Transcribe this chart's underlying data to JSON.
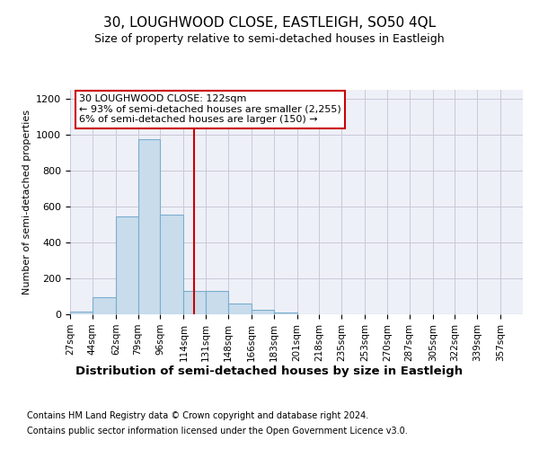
{
  "title": "30, LOUGHWOOD CLOSE, EASTLEIGH, SO50 4QL",
  "subtitle": "Size of property relative to semi-detached houses in Eastleigh",
  "xlabel": "Distribution of semi-detached houses by size in Eastleigh",
  "ylabel": "Number of semi-detached properties",
  "footnote1": "Contains HM Land Registry data © Crown copyright and database right 2024.",
  "footnote2": "Contains public sector information licensed under the Open Government Licence v3.0.",
  "annotation_line1": "30 LOUGHWOOD CLOSE: 122sqm",
  "annotation_line2": "← 93% of semi-detached houses are smaller (2,255)",
  "annotation_line3": "6% of semi-detached houses are larger (150) →",
  "bar_edges": [
    27,
    44,
    62,
    79,
    96,
    114,
    131,
    148,
    166,
    183,
    201,
    218,
    235,
    253,
    270,
    287,
    305,
    322,
    339,
    357,
    374
  ],
  "bar_heights": [
    15,
    97,
    547,
    975,
    557,
    130,
    130,
    62,
    27,
    10,
    0,
    0,
    0,
    0,
    0,
    0,
    0,
    0,
    0,
    0
  ],
  "bar_color": "#c8dcec",
  "bar_edge_color": "#7aadcc",
  "vline_x": 122,
  "vline_color": "#cc0000",
  "ylim": [
    0,
    1250
  ],
  "yticks": [
    0,
    200,
    400,
    600,
    800,
    1000,
    1200
  ],
  "grid_color": "#c8c8d8",
  "background_color": "#eef0f8",
  "title_fontsize": 11,
  "subtitle_fontsize": 9,
  "ylabel_fontsize": 8,
  "xtick_fontsize": 7.5,
  "ytick_fontsize": 8,
  "xlabel_fontsize": 9.5,
  "footnote_fontsize": 7,
  "annotation_fontsize": 8
}
